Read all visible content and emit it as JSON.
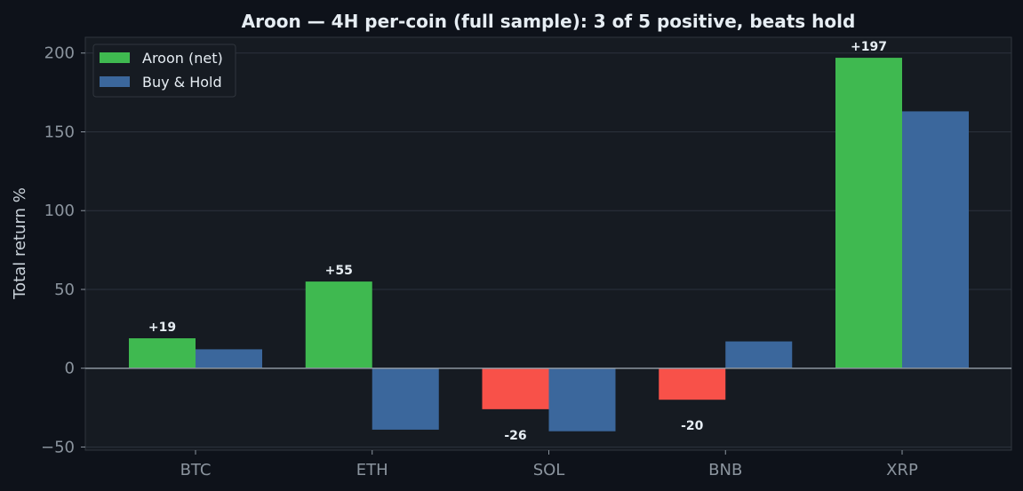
{
  "chart_data": {
    "type": "bar",
    "title": "Aroon — 4H per-coin (full sample): 3 of 5 positive, beats hold",
    "xlabel": "",
    "ylabel": "Total return %",
    "categories": [
      "BTC",
      "ETH",
      "SOL",
      "BNB",
      "XRP"
    ],
    "series": [
      {
        "name": "Aroon (net)",
        "values": [
          19,
          55,
          -26,
          -20,
          197
        ],
        "labels": [
          "+19",
          "+55",
          "-26",
          "-20",
          "+197"
        ],
        "color_positive": "#3fb950",
        "color_negative": "#f85149"
      },
      {
        "name": "Buy & Hold",
        "values": [
          12,
          -39,
          -40,
          17,
          163
        ],
        "color": "#3b679c"
      }
    ],
    "ylim": [
      -52,
      210
    ],
    "yticks": [
      -50,
      0,
      50,
      100,
      150,
      200
    ],
    "grid": "horizontal",
    "legend": "top-left"
  },
  "colors": {
    "page_bg": "#0e121a",
    "plot_bg": "#161b22",
    "axis": "#30363d",
    "zero_line": "#8b949e",
    "tick_text": "#8b949e",
    "title_text": "#e6edf3",
    "label_text": "#e6edf3",
    "grid": "#2b323c"
  }
}
